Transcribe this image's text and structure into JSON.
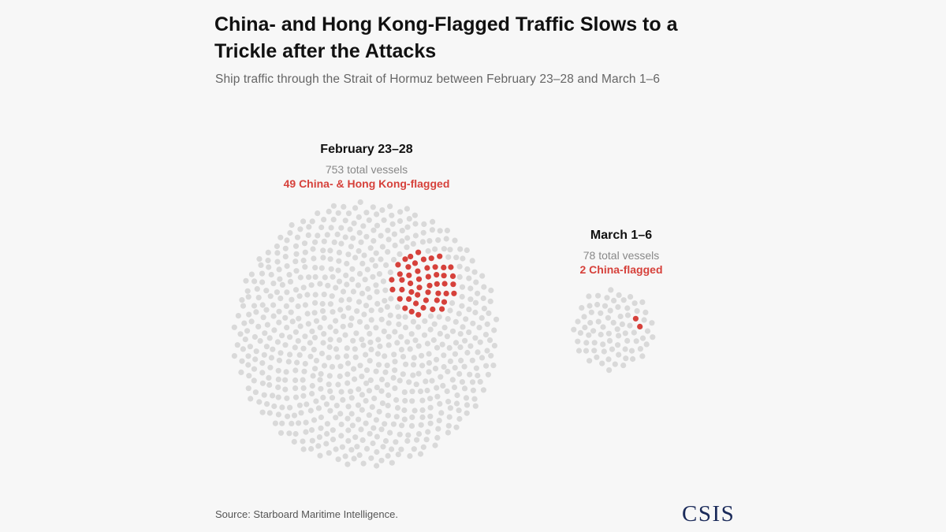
{
  "title": "China- and Hong Kong-Flagged Traffic Slows to a Trickle after the Attacks",
  "subtitle": "Ship traffic through the Strait of Hormuz between February 23–28 and March 1–6",
  "source": "Source: Starboard Maritime Intelligence.",
  "logo_text": "CSIS",
  "colors": {
    "background": "#f7f7f7",
    "vessel_dot": "#d9d9d9",
    "flagged_dot": "#d6413b",
    "logo": "#1b2b5a"
  },
  "chart_data": [
    {
      "type": "unit-dot",
      "period": "February 23–28",
      "total_label": "753 total vessels",
      "flagged_label": "49 China- & Hong Kong-flagged",
      "total": 753,
      "flagged": 49
    },
    {
      "type": "unit-dot",
      "period": "March 1–6",
      "total_label": "78 total vessels",
      "flagged_label": "2 China-flagged",
      "total": 78,
      "flagged": 2
    }
  ]
}
